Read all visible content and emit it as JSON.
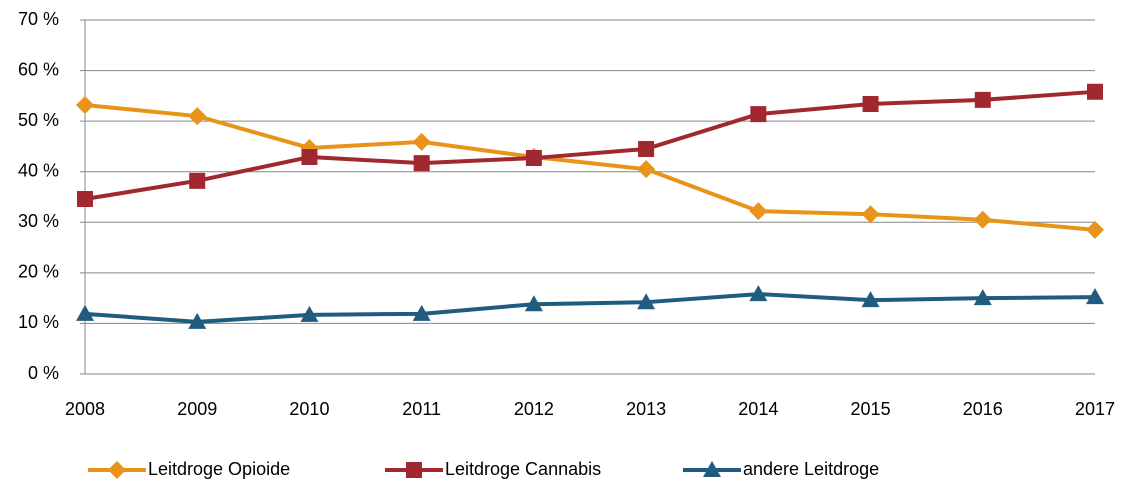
{
  "chart_data": {
    "type": "line",
    "categories": [
      "2008",
      "2009",
      "2010",
      "2011",
      "2012",
      "2013",
      "2014",
      "2015",
      "2016",
      "2017"
    ],
    "series": [
      {
        "name": "Leitdroge Opioide",
        "color": "#e8941a",
        "marker": "diamond",
        "values": [
          53.2,
          51.0,
          44.7,
          45.9,
          42.9,
          40.5,
          32.2,
          31.6,
          30.5,
          28.5
        ]
      },
      {
        "name": "Leitdroge Cannabis",
        "color": "#a0282e",
        "marker": "square",
        "values": [
          34.6,
          38.2,
          42.9,
          41.7,
          42.7,
          44.5,
          51.4,
          53.4,
          54.2,
          55.8
        ]
      },
      {
        "name": "andere Leitdroge",
        "color": "#1f5c80",
        "marker": "triangle",
        "values": [
          11.9,
          10.3,
          11.7,
          11.9,
          13.8,
          14.2,
          15.8,
          14.6,
          15.0,
          15.2
        ]
      }
    ],
    "ylim": [
      0,
      70
    ],
    "yticks": [
      {
        "value": 0,
        "label": "0 %"
      },
      {
        "value": 10,
        "label": "10 %"
      },
      {
        "value": 20,
        "label": "20 %"
      },
      {
        "value": 30,
        "label": "30 %"
      },
      {
        "value": 40,
        "label": "40 %"
      },
      {
        "value": 50,
        "label": "50 %"
      },
      {
        "value": 60,
        "label": "60 %"
      },
      {
        "value": 70,
        "label": "70 %"
      }
    ],
    "grid": true,
    "legend": "bottom"
  }
}
